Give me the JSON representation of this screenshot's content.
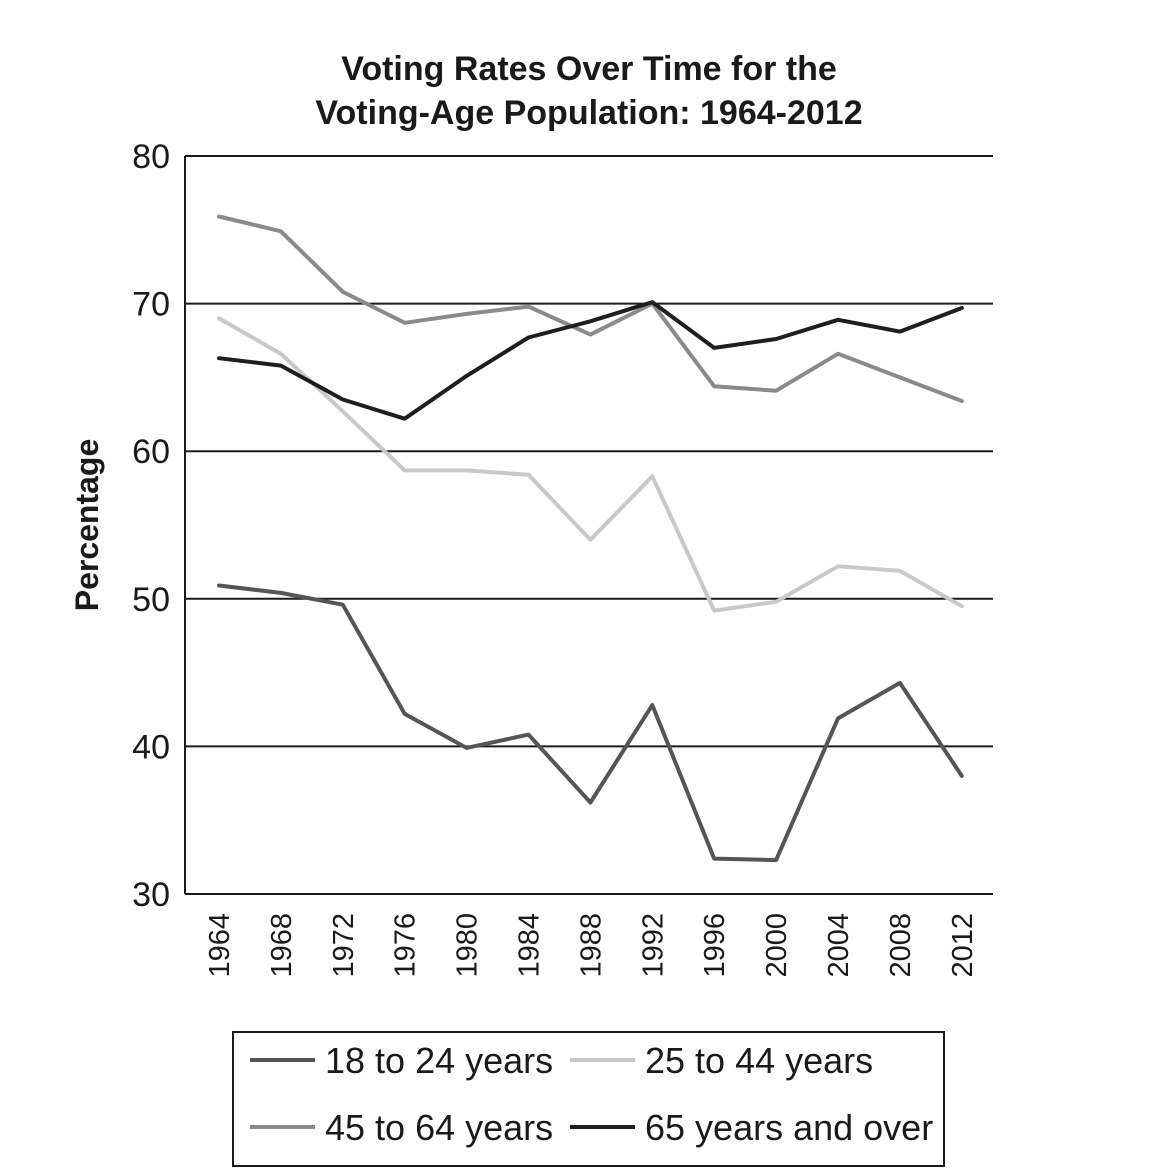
{
  "chart_data": {
    "type": "line",
    "title": [
      "Voting Rates Over Time for the",
      "Voting-Age Population: 1964-2012"
    ],
    "xlabel": "",
    "ylabel": "Percentage",
    "ylim": [
      30,
      80
    ],
    "yticks": [
      30,
      40,
      50,
      60,
      70,
      80
    ],
    "grid": "horizontal",
    "legend_position": "bottom",
    "x": [
      "1964",
      "1968",
      "1972",
      "1976",
      "1980",
      "1984",
      "1988",
      "1992",
      "1996",
      "2000",
      "2004",
      "2008",
      "2012"
    ],
    "series": [
      {
        "name": "18 to 24 years",
        "color": "#555555",
        "values": [
          50.9,
          50.4,
          49.6,
          42.2,
          39.9,
          40.8,
          36.2,
          42.8,
          32.4,
          32.3,
          41.9,
          44.3,
          38.0
        ]
      },
      {
        "name": "25 to 44 years",
        "color": "#c8c8c8",
        "values": [
          69.0,
          66.6,
          62.7,
          58.7,
          58.7,
          58.4,
          54.0,
          58.3,
          49.2,
          49.8,
          52.2,
          51.9,
          49.5
        ]
      },
      {
        "name": "45 to 64 years",
        "color": "#8a8a8a",
        "values": [
          75.9,
          74.9,
          70.8,
          68.7,
          69.3,
          69.8,
          67.9,
          70.0,
          64.4,
          64.1,
          66.6,
          65.0,
          63.4
        ]
      },
      {
        "name": "65 years and over",
        "color": "#1e1e1e",
        "values": [
          66.3,
          65.8,
          63.5,
          62.2,
          65.1,
          67.7,
          68.8,
          70.1,
          67.0,
          67.6,
          68.9,
          68.1,
          69.7
        ]
      }
    ]
  }
}
